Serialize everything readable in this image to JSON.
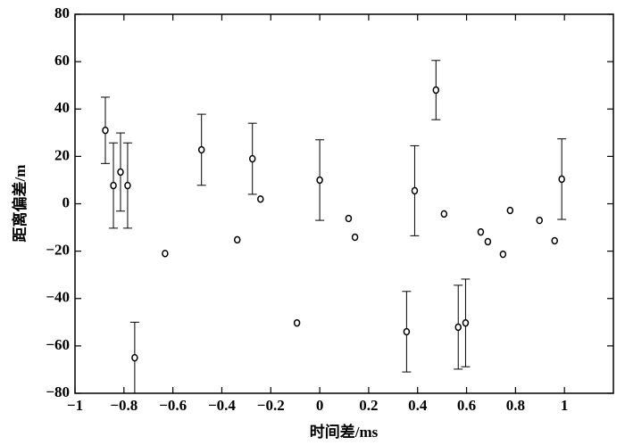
{
  "chart_data": {
    "type": "scatter",
    "x_label": "时间差/ms",
    "y_label": "距离偏差/m",
    "x": [
      -0.876,
      -0.843,
      -0.814,
      -0.785,
      -0.756,
      -0.632,
      -0.483,
      -0.337,
      -0.275,
      -0.242,
      -0.093,
      0,
      0.118,
      0.144,
      0.355,
      0.388,
      0.475,
      0.508,
      0.566,
      0.596,
      0.658,
      0.687,
      0.749,
      0.778,
      0.898,
      0.96,
      0.989
    ],
    "values": [
      31,
      7.7,
      13.4,
      7.7,
      -65,
      -21,
      22.8,
      -15.2,
      19,
      2,
      -50.3,
      10,
      -6.2,
      -14.1,
      -54,
      5.5,
      48,
      -4.3,
      -52.1,
      -50.3,
      -11.9,
      -16,
      -21.3,
      -2.8,
      -7,
      -15.6,
      10.4
    ],
    "errors": [
      14,
      18,
      16.5,
      18,
      15,
      null,
      15,
      null,
      15,
      null,
      null,
      17,
      null,
      null,
      17,
      19,
      12.5,
      null,
      17.7,
      18.5,
      null,
      null,
      null,
      null,
      null,
      null,
      17
    ],
    "color": "#000000",
    "xlim": [
      -1,
      1.2
    ],
    "xticks": [
      {
        "value": -1,
        "label": "−1"
      },
      {
        "value": -0.8,
        "label": "−0.8"
      },
      {
        "value": -0.6,
        "label": "−0.6"
      },
      {
        "value": -0.4,
        "label": "−0.4"
      },
      {
        "value": -0.2,
        "label": "−0.2"
      },
      0,
      0.2,
      0.4,
      0.6,
      0.8,
      1
    ],
    "ylim": [
      -80,
      80
    ],
    "yticks": [
      {
        "value": -80,
        "label": "−80"
      },
      {
        "value": -60,
        "label": "−60"
      },
      {
        "value": -40,
        "label": "−40"
      },
      {
        "value": -20,
        "label": "−20"
      },
      0,
      20,
      40,
      60,
      80
    ]
  }
}
